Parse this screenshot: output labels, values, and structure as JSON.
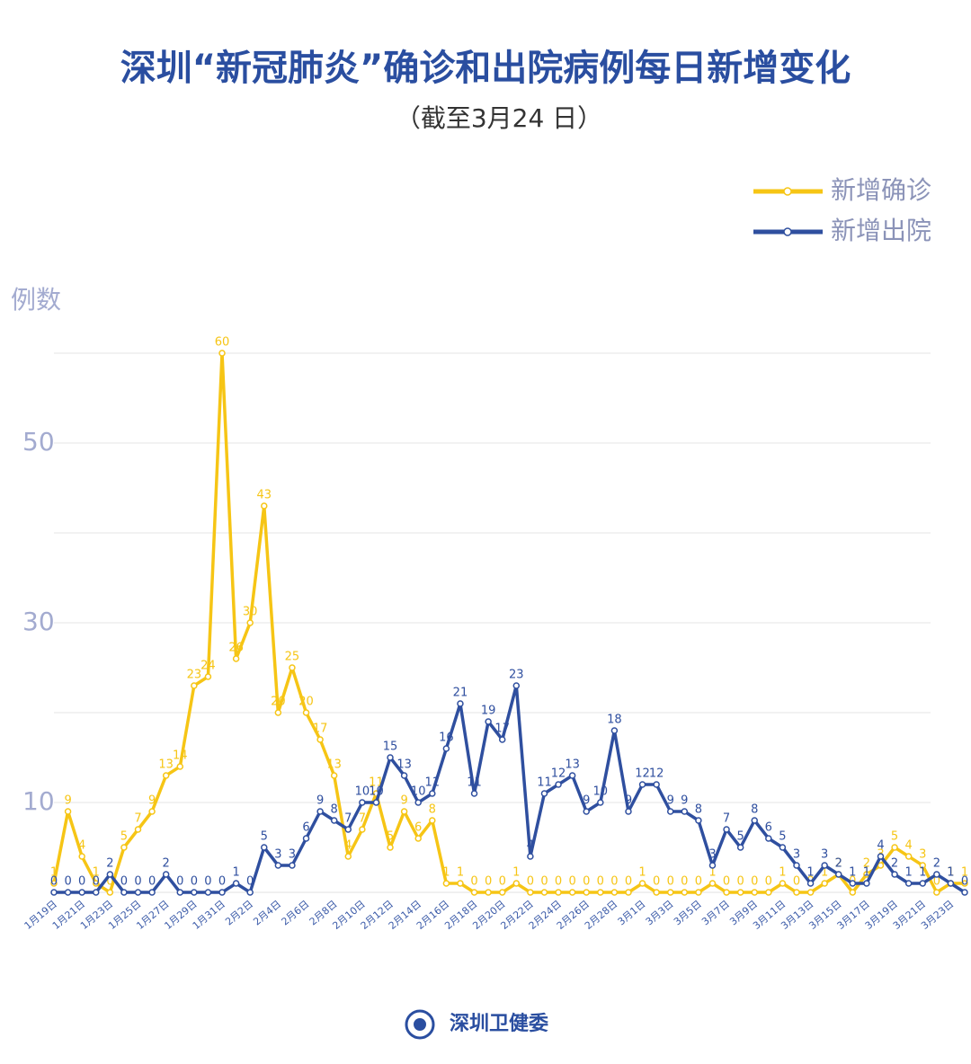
{
  "chart_data": {
    "type": "line",
    "title": "深圳“新冠肺炎”确诊和出院病例每日新增变化",
    "subtitle": "（截至3月24 日）",
    "y_label": "例数",
    "source": "深圳卫健委",
    "categories": [
      "1月19日",
      null,
      "1月21日",
      null,
      "1月23日",
      null,
      "1月25日",
      null,
      "1月27日",
      null,
      "1月29日",
      null,
      "1月31日",
      null,
      "2月2日",
      null,
      "2月4日",
      null,
      "2月6日",
      null,
      "2月8日",
      null,
      "2月10日",
      null,
      "2月12日",
      null,
      "2月14日",
      null,
      "2月16日",
      null,
      "2月18日",
      null,
      "2月20日",
      null,
      "2月22日",
      null,
      "2月24日",
      null,
      "2月26日",
      null,
      "2月28日",
      null,
      "3月1日",
      null,
      "3月3日",
      null,
      "3月5日",
      null,
      "3月7日",
      null,
      "3月9日",
      null,
      "3月11日",
      null,
      "3月13日",
      null,
      "3月15日",
      null,
      "3月17日",
      null,
      "3月19日",
      null,
      "3月21日",
      null,
      "3月23日",
      null
    ],
    "series": [
      {
        "name": "新增确诊",
        "color": "#f6c515",
        "values": [
          1,
          9,
          4,
          1,
          0,
          5,
          7,
          9,
          13,
          14,
          23,
          24,
          60,
          26,
          30,
          43,
          20,
          25,
          20,
          17,
          13,
          4,
          7,
          11,
          5,
          9,
          6,
          8,
          1,
          1,
          0,
          0,
          0,
          1,
          0,
          0,
          0,
          0,
          0,
          0,
          0,
          0,
          1,
          0,
          0,
          0,
          0,
          1,
          0,
          0,
          0,
          0,
          1,
          0,
          0,
          1,
          2,
          0,
          2,
          3,
          5,
          4,
          3,
          0,
          1,
          1
        ]
      },
      {
        "name": "新增出院",
        "color": "#2f4f9f",
        "values": [
          0,
          0,
          0,
          0,
          2,
          0,
          0,
          0,
          2,
          0,
          0,
          0,
          0,
          1,
          0,
          5,
          3,
          3,
          6,
          9,
          8,
          7,
          10,
          10,
          15,
          13,
          10,
          11,
          16,
          21,
          11,
          19,
          17,
          23,
          4,
          11,
          12,
          13,
          9,
          10,
          18,
          9,
          12,
          12,
          9,
          9,
          8,
          3,
          7,
          5,
          8,
          6,
          5,
          3,
          1,
          3,
          2,
          1,
          1,
          4,
          2,
          1,
          1,
          2,
          1,
          0
        ]
      }
    ],
    "ylim": [
      0,
      60
    ],
    "yticks": [
      10,
      30,
      50
    ],
    "minor_yticks": [
      20,
      40,
      60
    ],
    "grid": true,
    "legend": "top-right"
  }
}
